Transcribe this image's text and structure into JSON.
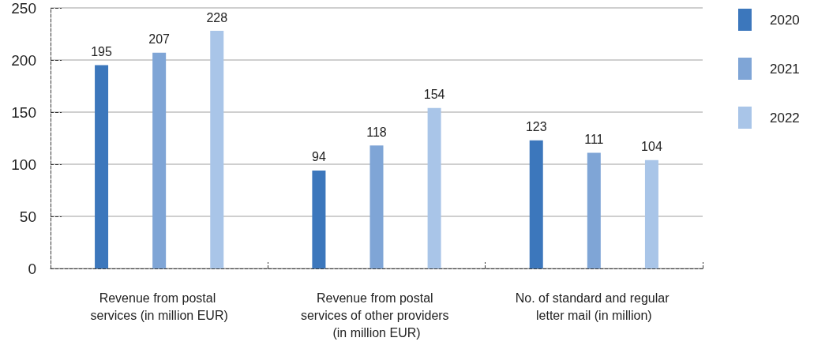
{
  "chart_data": {
    "type": "bar",
    "categories": [
      "Revenue from postal services (in million EUR)",
      "Revenue from postal services of other providers (in million EUR)",
      "No. of standard and regular letter mail (in million)"
    ],
    "series": [
      {
        "name": "2020",
        "color": "#3c77bc",
        "values": [
          195,
          94,
          123
        ]
      },
      {
        "name": "2021",
        "color": "#7fa5d6",
        "values": [
          207,
          118,
          111
        ]
      },
      {
        "name": "2022",
        "color": "#a9c5e8",
        "values": [
          228,
          154,
          104
        ]
      }
    ],
    "ylim": [
      0,
      250
    ],
    "yticks": [
      0,
      50,
      100,
      150,
      200,
      250
    ],
    "grid": "y",
    "legend": "right",
    "data_labels": true
  }
}
